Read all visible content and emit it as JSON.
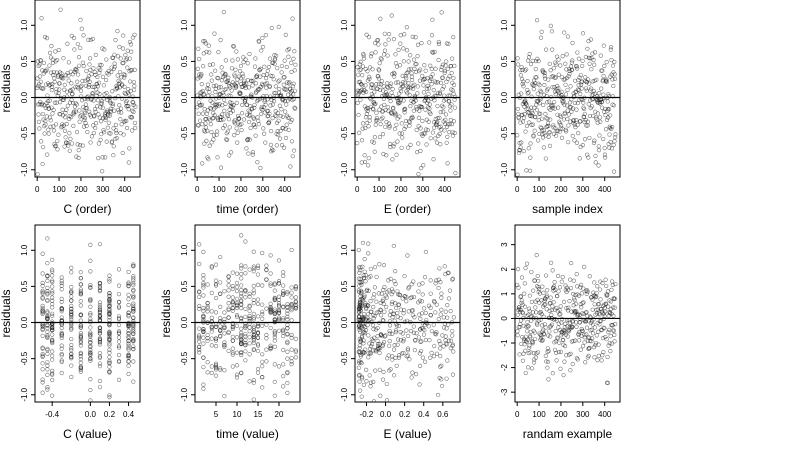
{
  "chart_data": [
    {
      "type": "scatter",
      "xlabel": "C (order)",
      "ylabel": "residuals",
      "xticks": [
        "0",
        "100",
        "200",
        "300",
        "400"
      ],
      "yticks": [
        "-1.0",
        "-0.5",
        "0.0",
        "0.5",
        "1.0"
      ],
      "xlim": [
        -10,
        470
      ],
      "ylim": [
        -1.1,
        1.35
      ],
      "x_kind": "order",
      "y_sd": 0.42,
      "y_clip": 1.22,
      "reference_line": 0
    },
    {
      "type": "scatter",
      "xlabel": "time (order)",
      "ylabel": "residuals",
      "xticks": [
        "0",
        "100",
        "200",
        "300",
        "400"
      ],
      "yticks": [
        "-1.0",
        "-0.5",
        "0.0",
        "0.5",
        "1.0"
      ],
      "xlim": [
        -10,
        470
      ],
      "ylim": [
        -1.1,
        1.35
      ],
      "x_kind": "order",
      "y_sd": 0.42,
      "y_clip": 1.22,
      "reference_line": 0
    },
    {
      "type": "scatter",
      "xlabel": "E (order)",
      "ylabel": "residuals",
      "xticks": [
        "0",
        "100",
        "200",
        "300",
        "400"
      ],
      "yticks": [
        "-1.0",
        "-0.5",
        "0.0",
        "0.5",
        "1.0"
      ],
      "xlim": [
        -10,
        470
      ],
      "ylim": [
        -1.1,
        1.35
      ],
      "x_kind": "order",
      "y_sd": 0.42,
      "y_clip": 1.22,
      "reference_line": 0
    },
    {
      "type": "scatter",
      "xlabel": "sample index",
      "ylabel": "residuals",
      "xticks": [
        "0",
        "100",
        "200",
        "300",
        "400"
      ],
      "yticks": [
        "-1.0",
        "-0.5",
        "0.0",
        "0.5",
        "1.0"
      ],
      "xlim": [
        -10,
        470
      ],
      "ylim": [
        -1.1,
        1.35
      ],
      "x_kind": "order",
      "y_sd": 0.4,
      "y_clip": 1.22,
      "reference_line": 0
    },
    {
      "type": "scatter",
      "xlabel": "C (value)",
      "ylabel": "residuals",
      "xticks": [
        "-0.4",
        "0.0",
        "0.2",
        "0.4"
      ],
      "xtick_values": [
        -0.4,
        0.0,
        0.2,
        0.4
      ],
      "yticks": [
        "-1.0",
        "-0.5",
        "0.0",
        "0.5",
        "1.0"
      ],
      "xlim": [
        -0.58,
        0.52
      ],
      "ylim": [
        -1.1,
        1.35
      ],
      "x_kind": "discrete",
      "x_levels": [
        -0.5,
        -0.45,
        -0.4,
        -0.3,
        -0.2,
        -0.1,
        0.0,
        0.1,
        0.2,
        0.3,
        0.4,
        0.45
      ],
      "y_sd": 0.42,
      "y_clip": 1.22,
      "reference_line": 0
    },
    {
      "type": "scatter",
      "xlabel": "time (value)",
      "ylabel": "residuals",
      "xticks": [
        "5",
        "10",
        "15",
        "20"
      ],
      "xtick_values": [
        5,
        10,
        15,
        20
      ],
      "yticks": [
        "-1.0",
        "-0.5",
        "0.0",
        "0.5",
        "1.0"
      ],
      "xlim": [
        0,
        25
      ],
      "ylim": [
        -1.1,
        1.35
      ],
      "x_kind": "discrete",
      "x_levels": [
        1,
        2,
        3,
        4,
        5,
        6,
        7,
        8,
        9,
        10,
        11,
        12,
        13,
        14,
        15,
        16,
        17,
        18,
        19,
        20,
        21,
        22,
        23,
        24
      ],
      "y_sd": 0.42,
      "y_clip": 1.22,
      "reference_line": 0
    },
    {
      "type": "scatter",
      "xlabel": "E (value)",
      "ylabel": "residuals",
      "xticks": [
        "-0.2",
        "0.0",
        "0.2",
        "0.4",
        "0.6"
      ],
      "xtick_values": [
        -0.2,
        0.0,
        0.2,
        0.4,
        0.6
      ],
      "yticks": [
        "-1.0",
        "-0.5",
        "0.0",
        "0.5",
        "1.0"
      ],
      "xlim": [
        -0.32,
        0.78
      ],
      "ylim": [
        -1.1,
        1.35
      ],
      "x_kind": "skewed",
      "y_sd": 0.42,
      "y_clip": 1.22,
      "reference_line": 0
    },
    {
      "type": "scatter",
      "xlabel": "randam example",
      "ylabel": "residuals",
      "xticks": [
        "0",
        "100",
        "200",
        "300",
        "400"
      ],
      "yticks": [
        "-3",
        "-2",
        "-1",
        "0",
        "1",
        "2",
        "3"
      ],
      "xlim": [
        -10,
        470
      ],
      "ylim": [
        -3.4,
        3.8
      ],
      "x_kind": "order",
      "y_sd": 1.0,
      "y_clip": 3.3,
      "reference_line": 0
    }
  ]
}
